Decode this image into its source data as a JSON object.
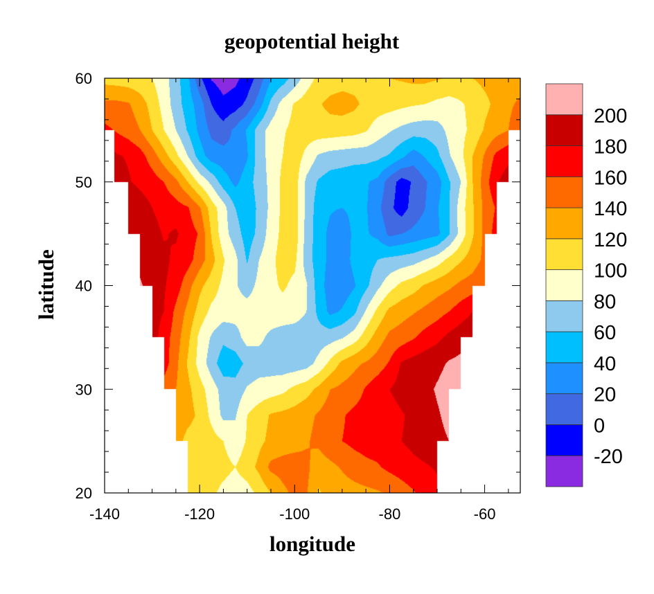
{
  "chart_data": {
    "type": "contour",
    "title": "geopotential height",
    "xlabel": "longitude",
    "ylabel": "latitude",
    "x_axis": {
      "range": [
        -140,
        -52.5
      ],
      "major_ticks": [
        -140,
        -120,
        -100,
        -80,
        -60
      ],
      "minor_step": 5
    },
    "y_axis": {
      "range": [
        20,
        60
      ],
      "major_ticks": [
        20,
        30,
        40,
        50,
        60
      ],
      "minor_step": 2
    },
    "grid": false,
    "legend": {
      "type": "colorbar",
      "placement": "right"
    },
    "levels": [
      -20,
      0,
      20,
      40,
      60,
      80,
      100,
      120,
      140,
      160,
      180,
      200
    ],
    "level_labels": [
      "-20",
      "0",
      "20",
      "40",
      "60",
      "80",
      "100",
      "120",
      "140",
      "160",
      "180",
      "200"
    ],
    "colors": [
      "#8A2BE2",
      "#0000FF",
      "#4169E1",
      "#1E90FF",
      "#00BFFF",
      "#8DCAED",
      "#FFFFCC",
      "#FFDF33",
      "#FFA800",
      "#FF6A00",
      "#FF0000",
      "#C80000",
      "#FFB0B0"
    ],
    "grid_lon": {
      "start": -140,
      "step": 2.5,
      "count": 36
    },
    "grid_lat": {
      "start": 20,
      "step": 2.5,
      "count": 17
    },
    "values": [
      [
        110,
        110,
        110,
        110,
        110,
        110,
        110,
        110,
        108,
        104,
        95,
        90,
        92,
        105,
        120,
        135,
        145,
        142,
        118,
        125,
        130,
        132,
        135,
        138,
        142,
        150,
        158,
        168,
        175,
        178,
        180,
        180,
        180,
        180,
        180,
        180
      ],
      [
        112,
        112,
        112,
        112,
        112,
        112,
        112,
        112,
        110,
        108,
        106,
        100,
        110,
        125,
        145,
        148,
        150,
        145,
        128,
        135,
        142,
        150,
        155,
        158,
        165,
        170,
        175,
        178,
        182,
        185,
        185,
        185,
        185,
        185,
        185,
        185
      ],
      [
        130,
        130,
        130,
        130,
        130,
        130,
        130,
        112,
        110,
        108,
        100,
        88,
        102,
        115,
        125,
        130,
        132,
        138,
        145,
        155,
        160,
        165,
        168,
        170,
        175,
        180,
        185,
        190,
        195,
        200,
        200,
        200,
        200,
        200,
        200,
        200
      ],
      [
        140,
        140,
        140,
        140,
        140,
        140,
        138,
        128,
        115,
        95,
        75,
        78,
        100,
        110,
        122,
        125,
        128,
        135,
        142,
        150,
        158,
        165,
        168,
        172,
        172,
        178,
        185,
        190,
        198,
        205,
        205,
        205,
        205,
        205,
        205,
        205
      ],
      [
        150,
        150,
        150,
        150,
        150,
        150,
        140,
        125,
        108,
        90,
        72,
        68,
        82,
        88,
        90,
        95,
        105,
        112,
        125,
        140,
        145,
        150,
        162,
        172,
        180,
        188,
        192,
        195,
        202,
        208,
        210,
        210,
        210,
        210,
        210,
        210
      ],
      [
        200,
        195,
        190,
        185,
        178,
        170,
        145,
        118,
        92,
        70,
        48,
        50,
        65,
        70,
        70,
        68,
        68,
        72,
        85,
        105,
        125,
        135,
        142,
        150,
        162,
        182,
        188,
        192,
        195,
        202,
        205,
        208,
        210,
        210,
        210,
        210
      ],
      [
        215,
        212,
        208,
        200,
        190,
        170,
        150,
        125,
        95,
        78,
        65,
        72,
        88,
        85,
        75,
        70,
        68,
        68,
        70,
        72,
        78,
        90,
        110,
        130,
        145,
        150,
        158,
        168,
        175,
        185,
        192,
        198,
        202,
        205,
        205,
        205
      ],
      [
        225,
        220,
        212,
        205,
        188,
        180,
        155,
        135,
        112,
        95,
        90,
        88,
        88,
        90,
        92,
        92,
        90,
        80,
        55,
        35,
        42,
        55,
        82,
        105,
        125,
        132,
        138,
        145,
        152,
        160,
        170,
        180,
        188,
        195,
        200,
        205
      ],
      [
        225,
        220,
        212,
        202,
        192,
        182,
        170,
        148,
        125,
        110,
        95,
        82,
        72,
        85,
        95,
        103,
        95,
        82,
        50,
        30,
        28,
        38,
        55,
        75,
        92,
        105,
        112,
        122,
        130,
        136,
        145,
        150,
        160,
        172,
        185,
        195
      ],
      [
        225,
        220,
        210,
        195,
        190,
        185,
        175,
        168,
        150,
        128,
        102,
        85,
        58,
        80,
        95,
        108,
        105,
        70,
        50,
        35,
        30,
        45,
        50,
        60,
        65,
        68,
        72,
        80,
        90,
        105,
        118,
        130,
        145,
        165,
        180,
        195
      ],
      [
        220,
        212,
        200,
        192,
        188,
        178,
        183,
        170,
        158,
        118,
        88,
        70,
        50,
        65,
        90,
        105,
        112,
        72,
        50,
        35,
        25,
        45,
        42,
        35,
        15,
        20,
        25,
        30,
        35,
        58,
        88,
        118,
        145,
        170,
        190,
        200
      ],
      [
        210,
        205,
        198,
        190,
        180,
        172,
        168,
        162,
        142,
        110,
        88,
        60,
        45,
        65,
        85,
        105,
        110,
        75,
        50,
        42,
        40,
        45,
        42,
        25,
        5,
        -10,
        8,
        20,
        38,
        58,
        90,
        118,
        145,
        162,
        180,
        190
      ],
      [
        200,
        190,
        182,
        175,
        170,
        160,
        145,
        120,
        95,
        75,
        50,
        35,
        50,
        70,
        85,
        105,
        110,
        75,
        58,
        50,
        48,
        45,
        42,
        35,
        10,
        -8,
        2,
        18,
        30,
        58,
        80,
        120,
        150,
        178,
        190,
        200
      ],
      [
        195,
        182,
        178,
        168,
        150,
        128,
        105,
        80,
        50,
        30,
        28,
        25,
        38,
        70,
        88,
        100,
        110,
        95,
        78,
        72,
        70,
        68,
        68,
        65,
        58,
        45,
        30,
        42,
        55,
        78,
        95,
        120,
        142,
        165,
        175,
        185
      ],
      [
        165,
        158,
        150,
        140,
        120,
        100,
        80,
        58,
        35,
        15,
        8,
        25,
        42,
        70,
        88,
        98,
        105,
        110,
        112,
        112,
        110,
        108,
        102,
        90,
        82,
        75,
        70,
        68,
        72,
        85,
        95,
        105,
        122,
        132,
        140,
        160
      ],
      [
        145,
        145,
        142,
        130,
        112,
        92,
        70,
        50,
        30,
        0,
        -15,
        -10,
        5,
        30,
        65,
        88,
        102,
        110,
        118,
        125,
        128,
        124,
        115,
        110,
        108,
        105,
        102,
        100,
        95,
        92,
        98,
        105,
        115,
        125,
        135,
        145
      ],
      [
        112,
        110,
        108,
        105,
        100,
        88,
        68,
        45,
        5,
        -22,
        -30,
        -25,
        -12,
        8,
        38,
        50,
        68,
        90,
        105,
        110,
        112,
        112,
        115,
        118,
        120,
        122,
        125,
        125,
        122,
        118,
        115,
        120,
        125,
        130,
        128,
        125
      ]
    ],
    "valid_region": [
      {
        "lat": [
          55,
          60
        ],
        "lon": [
          -140,
          -52.5
        ]
      },
      {
        "lat": [
          50,
          55
        ],
        "lon": [
          -138,
          -55
        ]
      },
      {
        "lat": [
          45,
          50
        ],
        "lon": [
          -135,
          -57.5
        ]
      },
      {
        "lat": [
          40,
          45
        ],
        "lon": [
          -132.5,
          -60
        ]
      },
      {
        "lat": [
          35,
          40
        ],
        "lon": [
          -130,
          -62.5
        ]
      },
      {
        "lat": [
          30,
          35
        ],
        "lon": [
          -127.5,
          -65
        ]
      },
      {
        "lat": [
          25,
          30
        ],
        "lon": [
          -125,
          -67.5
        ]
      },
      {
        "lat": [
          20,
          25
        ],
        "lon": [
          -122.5,
          -70
        ]
      }
    ]
  }
}
